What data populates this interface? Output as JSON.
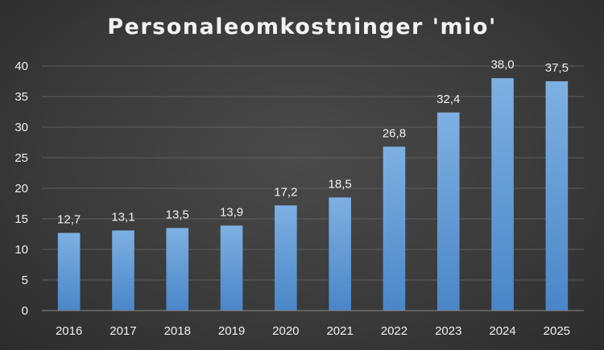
{
  "chart_data": {
    "type": "bar",
    "title": "Personaleomkostninger 'mio'",
    "categories": [
      "2016",
      "2017",
      "2018",
      "2019",
      "2020",
      "2021",
      "2022",
      "2023",
      "2024",
      "2025"
    ],
    "values": [
      12.7,
      13.1,
      13.5,
      13.9,
      17.2,
      18.5,
      26.8,
      32.4,
      38.0,
      37.5
    ],
    "data_labels": [
      "12,7",
      "13,1",
      "13,5",
      "13,9",
      "17,2",
      "18,5",
      "26,8",
      "32,4",
      "38,0",
      "37,5"
    ],
    "yticks": [
      0,
      5,
      10,
      15,
      20,
      25,
      30,
      35,
      40
    ],
    "ylim": [
      0,
      40
    ],
    "xlabel": "",
    "ylabel": "",
    "grid": true,
    "legend": "none",
    "colors": {
      "bar_top": "#7eb0e2",
      "bar_bottom": "#4a86c8",
      "grid": "#5e5e5e",
      "axis": "#8a8a8a",
      "text": "#f0f0f0",
      "background": "#3a3a3a"
    }
  }
}
